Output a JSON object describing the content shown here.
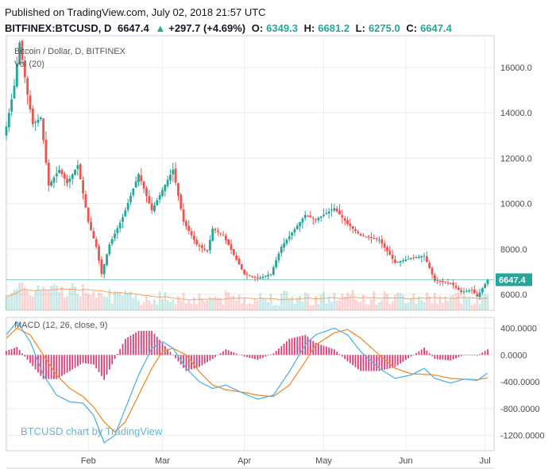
{
  "header": {
    "published": "Published on TradingView.com, July 02, 2018 21:57 UTC",
    "symbol": "BITFINEX:BTCUSD, D",
    "last": "6647.4",
    "change_arrow": "▲",
    "change": "+297.7 (+4.69%)",
    "o_label": "O:",
    "o_value": "6349.3",
    "h_label": "H:",
    "h_value": "6681.2",
    "l_label": "L:",
    "l_value": "6275.0",
    "c_label": "C:",
    "c_value": "6647.4"
  },
  "colors": {
    "up": "#26a69a",
    "down": "#ef5350",
    "vol_ma": "#f4a261",
    "macd_line": "#4fb3e8",
    "signal_line": "#f28c28",
    "hist": "#d81b60",
    "price_label_bg": "#26a69a",
    "watermark": "#5eb8e0"
  },
  "chart_data": [
    {
      "type": "candlestick",
      "title": "Bitcoin / Dollar, D, BITFINEX",
      "overlay": "Vol (20)",
      "y_ticks": [
        "16000.0",
        "14000.0",
        "12000.0",
        "10000.0",
        "8000.0",
        "6000.0"
      ],
      "y_tick_values": [
        16000,
        14000,
        12000,
        10000,
        8000,
        6000
      ],
      "ylim": [
        5300,
        17400
      ],
      "x_ticks": [
        "Feb",
        "Mar",
        "Apr",
        "May",
        "Jun",
        "Jul"
      ],
      "x_tick_dates": [
        "2018-02-01",
        "2018-03-01",
        "2018-04-01",
        "2018-05-01",
        "2018-06-01",
        "2018-07-01"
      ],
      "x_start": "2018-01-01",
      "x_end": "2018-07-02",
      "last_price_label": "6647.4",
      "close_waypoints": [
        [
          "2018-01-01",
          13400
        ],
        [
          "2018-01-04",
          15200
        ],
        [
          "2018-01-06",
          17100
        ],
        [
          "2018-01-09",
          14800
        ],
        [
          "2018-01-11",
          13500
        ],
        [
          "2018-01-14",
          13800
        ],
        [
          "2018-01-17",
          10800
        ],
        [
          "2018-01-21",
          11500
        ],
        [
          "2018-01-24",
          10900
        ],
        [
          "2018-01-28",
          11700
        ],
        [
          "2018-02-01",
          9200
        ],
        [
          "2018-02-04",
          8100
        ],
        [
          "2018-02-06",
          6900
        ],
        [
          "2018-02-09",
          8200
        ],
        [
          "2018-02-14",
          9400
        ],
        [
          "2018-02-20",
          11300
        ],
        [
          "2018-02-25",
          9700
        ],
        [
          "2018-03-05",
          11500
        ],
        [
          "2018-03-09",
          9200
        ],
        [
          "2018-03-14",
          8200
        ],
        [
          "2018-03-18",
          7900
        ],
        [
          "2018-03-20",
          8900
        ],
        [
          "2018-03-24",
          8600
        ],
        [
          "2018-04-01",
          6900
        ],
        [
          "2018-04-06",
          6700
        ],
        [
          "2018-04-11",
          6900
        ],
        [
          "2018-04-15",
          8100
        ],
        [
          "2018-04-24",
          9500
        ],
        [
          "2018-04-28",
          9300
        ],
        [
          "2018-05-05",
          9800
        ],
        [
          "2018-05-10",
          9100
        ],
        [
          "2018-05-15",
          8600
        ],
        [
          "2018-05-22",
          8400
        ],
        [
          "2018-05-28",
          7400
        ],
        [
          "2018-06-03",
          7600
        ],
        [
          "2018-06-08",
          7700
        ],
        [
          "2018-06-12",
          6600
        ],
        [
          "2018-06-18",
          6500
        ],
        [
          "2018-06-22",
          6100
        ],
        [
          "2018-06-26",
          6200
        ],
        [
          "2018-06-28",
          5900
        ],
        [
          "2018-07-02",
          6647.4
        ]
      ]
    },
    {
      "type": "line",
      "title": "MACD (12, 26, close, 9)",
      "y_ticks": [
        "400.0000",
        "0.0000",
        "-400.0000",
        "-800.0000",
        "-1200.0000"
      ],
      "y_tick_values": [
        400,
        0,
        -400,
        -800,
        -1200
      ],
      "ylim": [
        -1430,
        560
      ],
      "series": [
        {
          "name": "MACD",
          "waypoints": [
            [
              "2018-01-01",
              300
            ],
            [
              "2018-01-05",
              500
            ],
            [
              "2018-01-10",
              200
            ],
            [
              "2018-01-15",
              -300
            ],
            [
              "2018-01-20",
              -600
            ],
            [
              "2018-01-25",
              -700
            ],
            [
              "2018-01-30",
              -720
            ],
            [
              "2018-02-03",
              -900
            ],
            [
              "2018-02-07",
              -1310
            ],
            [
              "2018-02-11",
              -1200
            ],
            [
              "2018-02-15",
              -800
            ],
            [
              "2018-02-20",
              -300
            ],
            [
              "2018-02-25",
              100
            ],
            [
              "2018-03-01",
              200
            ],
            [
              "2018-03-05",
              100
            ],
            [
              "2018-03-10",
              -200
            ],
            [
              "2018-03-15",
              -400
            ],
            [
              "2018-03-20",
              -500
            ],
            [
              "2018-03-25",
              -450
            ],
            [
              "2018-04-01",
              -580
            ],
            [
              "2018-04-06",
              -660
            ],
            [
              "2018-04-12",
              -600
            ],
            [
              "2018-04-18",
              -250
            ],
            [
              "2018-04-24",
              150
            ],
            [
              "2018-04-28",
              300
            ],
            [
              "2018-05-05",
              400
            ],
            [
              "2018-05-10",
              300
            ],
            [
              "2018-05-15",
              50
            ],
            [
              "2018-05-22",
              -200
            ],
            [
              "2018-05-28",
              -350
            ],
            [
              "2018-06-03",
              -300
            ],
            [
              "2018-06-08",
              -200
            ],
            [
              "2018-06-12",
              -350
            ],
            [
              "2018-06-18",
              -420
            ],
            [
              "2018-06-23",
              -360
            ],
            [
              "2018-06-28",
              -380
            ],
            [
              "2018-07-02",
              -270
            ]
          ]
        },
        {
          "name": "Signal",
          "waypoints": [
            [
              "2018-01-01",
              250
            ],
            [
              "2018-01-05",
              400
            ],
            [
              "2018-01-10",
              300
            ],
            [
              "2018-01-15",
              0
            ],
            [
              "2018-01-20",
              -300
            ],
            [
              "2018-01-25",
              -500
            ],
            [
              "2018-01-30",
              -620
            ],
            [
              "2018-02-03",
              -780
            ],
            [
              "2018-02-07",
              -1000
            ],
            [
              "2018-02-11",
              -1150
            ],
            [
              "2018-02-15",
              -1000
            ],
            [
              "2018-02-20",
              -600
            ],
            [
              "2018-02-25",
              -200
            ],
            [
              "2018-03-01",
              50
            ],
            [
              "2018-03-05",
              100
            ],
            [
              "2018-03-10",
              0
            ],
            [
              "2018-03-15",
              -250
            ],
            [
              "2018-03-20",
              -450
            ],
            [
              "2018-03-25",
              -520
            ],
            [
              "2018-04-01",
              -560
            ],
            [
              "2018-04-06",
              -600
            ],
            [
              "2018-04-12",
              -620
            ],
            [
              "2018-04-18",
              -450
            ],
            [
              "2018-04-24",
              -100
            ],
            [
              "2018-04-28",
              150
            ],
            [
              "2018-05-05",
              330
            ],
            [
              "2018-05-10",
              380
            ],
            [
              "2018-05-15",
              250
            ],
            [
              "2018-05-22",
              0
            ],
            [
              "2018-05-28",
              -200
            ],
            [
              "2018-06-03",
              -280
            ],
            [
              "2018-06-08",
              -290
            ],
            [
              "2018-06-12",
              -300
            ],
            [
              "2018-06-18",
              -350
            ],
            [
              "2018-06-23",
              -360
            ],
            [
              "2018-06-28",
              -370
            ],
            [
              "2018-07-02",
              -340
            ]
          ]
        }
      ],
      "watermark": "BTCUSD chart by TradingView"
    }
  ]
}
